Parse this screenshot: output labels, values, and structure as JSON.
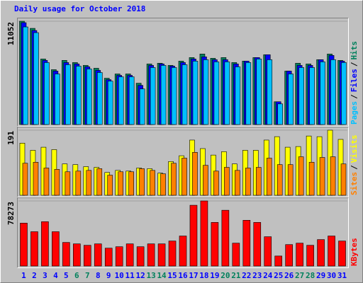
{
  "title": "Daily usage for October 2018",
  "chart_data": [
    {
      "type": "bar",
      "ylim": [
        0,
        11052
      ],
      "yticks": [
        11052
      ],
      "legend_separator": "/",
      "series": [
        {
          "name": "Hits",
          "color": "#00805C",
          "values": [
            11052,
            10290,
            7012,
            5869,
            6860,
            6631,
            6326,
            6021,
            4954,
            5412,
            5412,
            4421,
            6479,
            6555,
            6326,
            6784,
            7165,
            7546,
            7088,
            7165,
            6631,
            6784,
            7165,
            7470,
            2439,
            5717,
            6555,
            6479,
            6936,
            7546,
            6860
          ]
        },
        {
          "name": "Files",
          "color": "#0000FF",
          "values": [
            10900,
            10061,
            6860,
            5717,
            6631,
            6479,
            6174,
            5793,
            4802,
            5259,
            5259,
            4192,
            6326,
            6479,
            6250,
            6631,
            7012,
            7241,
            6936,
            6936,
            6479,
            6784,
            7165,
            7470,
            2439,
            5717,
            6326,
            6326,
            6936,
            7393,
            6784
          ]
        },
        {
          "name": "Pages",
          "color": "#00C0FF",
          "values": [
            10442,
            9832,
            6631,
            5412,
            6402,
            6250,
            5945,
            5564,
            4649,
            5107,
            5107,
            3811,
            6098,
            6326,
            6098,
            6402,
            6784,
            6936,
            6707,
            6707,
            6174,
            6631,
            7012,
            6936,
            2210,
            5412,
            6098,
            6098,
            6707,
            6936,
            6631
          ]
        }
      ]
    },
    {
      "type": "bar",
      "ylim": [
        0,
        191
      ],
      "yticks": [
        191
      ],
      "legend_separator": "/",
      "series": [
        {
          "name": "Visits",
          "color": "#FFFF00",
          "values": [
            153,
            132,
            141,
            134,
            92,
            90,
            84,
            82,
            67,
            73,
            71,
            80,
            78,
            65,
            99,
            116,
            162,
            137,
            118,
            128,
            92,
            132,
            132,
            162,
            172,
            141,
            143,
            174,
            172,
            191,
            164
          ]
        },
        {
          "name": "Sites",
          "color": "#FF8000",
          "values": [
            94,
            97,
            80,
            76,
            69,
            71,
            73,
            78,
            59,
            69,
            69,
            78,
            73,
            63,
            94,
            109,
            126,
            88,
            71,
            82,
            73,
            80,
            82,
            109,
            90,
            90,
            113,
            97,
            111,
            113,
            92
          ]
        }
      ]
    },
    {
      "type": "bar",
      "ylim": [
        0,
        78273
      ],
      "yticks": [
        78273
      ],
      "categories": [
        "1",
        "2",
        "3",
        "4",
        "5",
        "6",
        "7",
        "8",
        "9",
        "10",
        "11",
        "12",
        "13",
        "14",
        "15",
        "16",
        "17",
        "18",
        "19",
        "20",
        "21",
        "22",
        "23",
        "24",
        "25",
        "26",
        "27",
        "28",
        "29",
        "30",
        "31"
      ],
      "category_colors": [
        "#0000FF",
        "#0000FF",
        "#0000FF",
        "#0000FF",
        "#0000FF",
        "#00805C",
        "#00805C",
        "#0000FF",
        "#0000FF",
        "#0000FF",
        "#0000FF",
        "#0000FF",
        "#00805C",
        "#00805C",
        "#0000FF",
        "#0000FF",
        "#0000FF",
        "#0000FF",
        "#0000FF",
        "#00805C",
        "#00805C",
        "#0000FF",
        "#0000FF",
        "#0000FF",
        "#0000FF",
        "#0000FF",
        "#00805C",
        "#00805C",
        "#0000FF",
        "#0000FF",
        "#0000FF"
      ],
      "series": [
        {
          "name": "KBytes",
          "color": "#FF0000",
          "values": [
            51600,
            41280,
            53320,
            41280,
            28380,
            26660,
            24940,
            26660,
            21500,
            23220,
            26660,
            23220,
            26660,
            26660,
            30100,
            36120,
            73100,
            78273,
            52460,
            67080,
            27520,
            55040,
            52460,
            35260,
            12040,
            25800,
            27520,
            24940,
            31820,
            36120,
            30100
          ]
        }
      ]
    }
  ]
}
